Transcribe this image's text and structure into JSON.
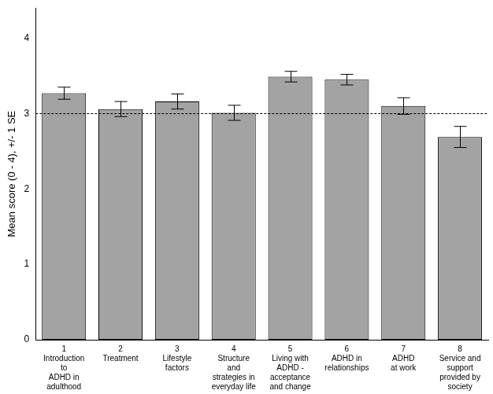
{
  "chart_data": {
    "type": "bar",
    "y_label": "Mean score (0 - 4), +/- 1 SE",
    "categories": [
      [
        "1",
        "Introduction",
        "to",
        "ADHD in",
        "adulthood"
      ],
      [
        "2",
        "Treatment"
      ],
      [
        "3",
        "Lifestyle",
        "factors"
      ],
      [
        "4",
        "Structure",
        "and",
        "strategies in",
        "everyday life"
      ],
      [
        "5",
        "Living with",
        "ADHD -",
        "acceptance",
        "and change"
      ],
      [
        "6",
        "ADHD in",
        "relationships"
      ],
      [
        "7",
        "ADHD",
        "at work"
      ],
      [
        "8",
        "Service and",
        "support",
        "provided by",
        "society"
      ]
    ],
    "values": [
      3.27,
      3.06,
      3.16,
      3.01,
      3.49,
      3.45,
      3.1,
      2.69
    ],
    "errors": [
      0.08,
      0.1,
      0.1,
      0.1,
      0.07,
      0.07,
      0.11,
      0.14
    ],
    "reference_line": 3,
    "color": "#a3a3a3",
    "ylim": [
      0,
      4.4
    ],
    "yticks": [
      0,
      1,
      2,
      3,
      4
    ],
    "grid": false
  }
}
